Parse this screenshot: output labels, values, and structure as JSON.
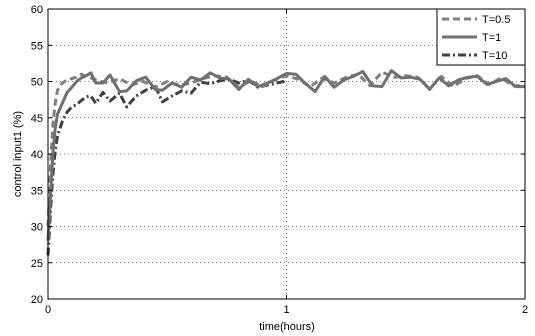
{
  "chart_data": {
    "type": "line",
    "title": "",
    "xlabel": "time(hours)",
    "ylabel": "control input1 (%)",
    "xlim": [
      0,
      2
    ],
    "ylim": [
      20,
      60
    ],
    "xticks": [
      0,
      1,
      2
    ],
    "yticks": [
      20,
      25,
      30,
      35,
      40,
      45,
      50,
      55,
      60
    ],
    "grid": true,
    "legend_position": "top-right",
    "series": [
      {
        "name": "T=0.5",
        "style": "dashed",
        "color": "#808080",
        "x": [
          0,
          0.01,
          0.02,
          0.03,
          0.04,
          0.06,
          0.08,
          0.1,
          0.12,
          0.14,
          0.16,
          0.18,
          0.2,
          0.25,
          0.3,
          0.35,
          0.4,
          0.45,
          0.5,
          0.55,
          0.6,
          0.65,
          0.7,
          0.75,
          0.8,
          0.85,
          0.9,
          0.95,
          1.0,
          1.05,
          1.1,
          1.15,
          1.2,
          1.25,
          1.3,
          1.35,
          1.4,
          1.45,
          1.5,
          1.55,
          1.6,
          1.65,
          1.7,
          1.75,
          1.8,
          1.85,
          1.9,
          1.95,
          2.0
        ],
        "y": [
          30,
          38,
          44,
          47,
          48.8,
          49.8,
          50.2,
          50.4,
          50.6,
          51,
          50.7,
          50.5,
          50.2,
          49.8,
          50.4,
          49.5,
          50.0,
          49.2,
          50.0,
          49.5,
          49.8,
          50.4,
          50.8,
          50.6,
          49.2,
          50.1,
          49.3,
          50.2,
          50.8,
          50.3,
          49.3,
          50.5,
          49.8,
          50.6,
          51.0,
          49.4,
          51.3,
          50.6,
          50.8,
          50.6,
          49.0,
          50.7,
          49.3,
          50.4,
          50.8,
          49.6,
          50.5,
          49.4,
          49.4
        ]
      },
      {
        "name": "T=1",
        "style": "solid",
        "color": "#707070",
        "x": [
          0,
          0.01,
          0.02,
          0.03,
          0.04,
          0.06,
          0.08,
          0.1,
          0.12,
          0.14,
          0.16,
          0.18,
          0.2,
          0.23,
          0.26,
          0.3,
          0.33,
          0.37,
          0.41,
          0.45,
          0.48,
          0.52,
          0.56,
          0.6,
          0.64,
          0.68,
          0.72,
          0.76,
          0.8,
          0.84,
          0.88,
          0.92,
          0.96,
          1.0,
          1.04,
          1.08,
          1.12,
          1.16,
          1.2,
          1.24,
          1.28,
          1.32,
          1.36,
          1.4,
          1.44,
          1.48,
          1.52,
          1.56,
          1.6,
          1.64,
          1.68,
          1.72,
          1.76,
          1.8,
          1.84,
          1.88,
          1.92,
          1.96,
          2.0
        ],
        "y": [
          28,
          34,
          40,
          43.5,
          45.5,
          47,
          48.5,
          49.2,
          50,
          50.5,
          50.8,
          51.2,
          49.8,
          49.8,
          50.9,
          48.6,
          48.7,
          50.1,
          50.6,
          48.9,
          48.8,
          49.8,
          49.2,
          50.6,
          50.2,
          51.2,
          50.5,
          50.3,
          48.9,
          50.3,
          49.3,
          49.8,
          50.4,
          51.1,
          51.0,
          49.7,
          48.6,
          50.7,
          49.2,
          50.2,
          50.7,
          51.4,
          49.4,
          49.3,
          51.5,
          50.5,
          50.6,
          50.3,
          48.9,
          50.5,
          49.4,
          50.2,
          50.6,
          50.7,
          49.6,
          50.0,
          50.4,
          49.3,
          49.3
        ]
      },
      {
        "name": "T=10",
        "style": "dashdot",
        "color": "#404040",
        "x": [
          0,
          0.01,
          0.02,
          0.03,
          0.04,
          0.06,
          0.08,
          0.1,
          0.12,
          0.14,
          0.16,
          0.18,
          0.2,
          0.23,
          0.26,
          0.3,
          0.33,
          0.37,
          0.41,
          0.45,
          0.48,
          0.52,
          0.56,
          0.6,
          0.64,
          0.68,
          0.72,
          0.76,
          0.8,
          0.84,
          0.88,
          0.92,
          0.96,
          1.0
        ],
        "y": [
          26,
          32,
          37,
          40.5,
          42.5,
          44.5,
          45.8,
          46.5,
          46.8,
          47.4,
          47.9,
          48.0,
          47.0,
          48.5,
          47.3,
          48.4,
          46.5,
          48.0,
          48.8,
          49.3,
          47.2,
          48.0,
          48.7,
          48.4,
          49.9,
          49.7,
          50.1,
          50.3,
          49.8,
          50.2,
          49.2,
          49.5,
          49.8,
          50.1
        ]
      }
    ]
  }
}
